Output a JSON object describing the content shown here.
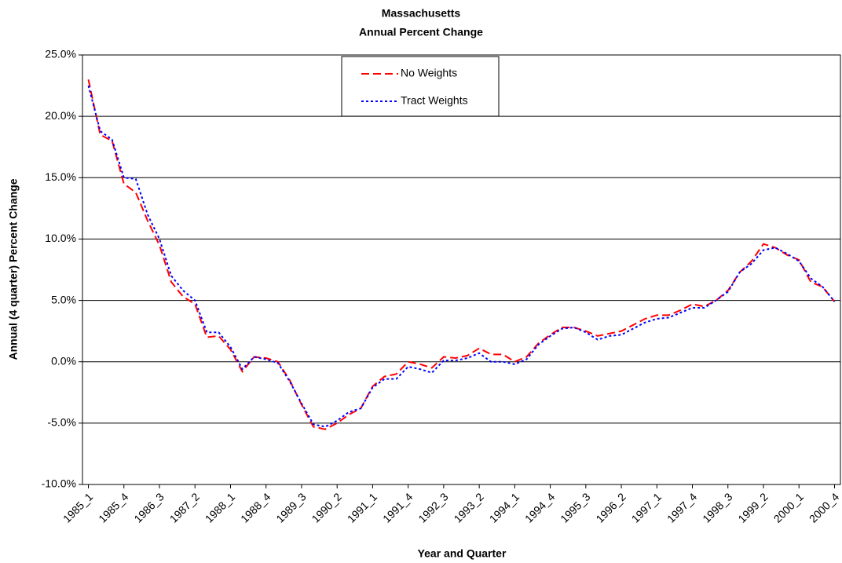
{
  "chart_data": {
    "type": "line",
    "title": "Massachusetts",
    "subtitle": "Annual Percent Change",
    "x_label": "Year and Quarter",
    "y_label": "Annual (4 quarter) Percent Change",
    "categories": [
      "1985_1",
      null,
      null,
      "1985_4",
      null,
      null,
      "1986_3",
      null,
      null,
      "1987_2",
      null,
      null,
      "1988_1",
      null,
      null,
      "1988_4",
      null,
      null,
      "1989_3",
      null,
      null,
      "1990_2",
      null,
      null,
      "1991_1",
      null,
      null,
      "1991_4",
      null,
      null,
      "1992_3",
      null,
      null,
      "1993_2",
      null,
      null,
      "1994_1",
      null,
      null,
      "1994_4",
      null,
      null,
      "1995_3",
      null,
      null,
      "1996_2",
      null,
      null,
      "1997_1",
      null,
      null,
      "1997_4",
      null,
      null,
      "1998_3",
      null,
      null,
      "1999_2",
      null,
      null,
      "2000_1",
      null,
      null,
      "2000_4"
    ],
    "series": [
      {
        "name": "No Weights",
        "color": "#ff0000",
        "dash": "dashed",
        "values": [
          23.0,
          18.5,
          18.0,
          14.5,
          13.8,
          11.5,
          9.5,
          6.5,
          5.3,
          4.7,
          2.0,
          2.1,
          1.0,
          -0.8,
          0.4,
          0.3,
          0.0,
          -1.5,
          -3.5,
          -5.3,
          -5.5,
          -5.0,
          -4.3,
          -3.8,
          -2.0,
          -1.2,
          -1.0,
          0.0,
          -0.2,
          -0.5,
          0.4,
          0.3,
          0.5,
          1.1,
          0.6,
          0.6,
          0.0,
          0.4,
          1.5,
          2.2,
          2.8,
          2.8,
          2.5,
          2.1,
          2.3,
          2.5,
          3.0,
          3.5,
          3.8,
          3.8,
          4.2,
          4.7,
          4.5,
          5.0,
          5.8,
          7.3,
          8.2,
          9.6,
          9.3,
          8.7,
          8.3,
          6.5,
          6.1,
          4.9
        ]
      },
      {
        "name": "Tract Weights",
        "color": "#0000ff",
        "dash": "dotted",
        "values": [
          22.5,
          18.8,
          18.1,
          15.0,
          14.9,
          12.0,
          10.0,
          7.0,
          5.8,
          5.0,
          2.4,
          2.4,
          1.2,
          -0.6,
          0.4,
          0.2,
          -0.1,
          -1.6,
          -3.4,
          -5.1,
          -5.3,
          -4.8,
          -4.1,
          -3.8,
          -2.1,
          -1.4,
          -1.4,
          -0.4,
          -0.6,
          -0.9,
          0.1,
          0.1,
          0.3,
          0.7,
          0.0,
          0.0,
          -0.2,
          0.2,
          1.4,
          2.1,
          2.7,
          2.8,
          2.4,
          1.8,
          2.1,
          2.2,
          2.7,
          3.2,
          3.5,
          3.6,
          4.0,
          4.4,
          4.4,
          5.0,
          5.7,
          7.3,
          8.0,
          9.1,
          9.3,
          8.8,
          8.2,
          6.8,
          6.1,
          4.9
        ]
      }
    ],
    "ylim": [
      -10,
      25
    ],
    "yticks": [
      {
        "value": -10,
        "label": "-10.0%"
      },
      {
        "value": -5,
        "label": "-5.0%"
      },
      {
        "value": 0,
        "label": "0.0%"
      },
      {
        "value": 5,
        "label": "5.0%"
      },
      {
        "value": 10,
        "label": "10.0%"
      },
      {
        "value": 15,
        "label": "15.0%"
      },
      {
        "value": 20,
        "label": "20.0%"
      },
      {
        "value": 25,
        "label": "25.0%"
      }
    ],
    "grid": true,
    "legend": "top-center"
  }
}
